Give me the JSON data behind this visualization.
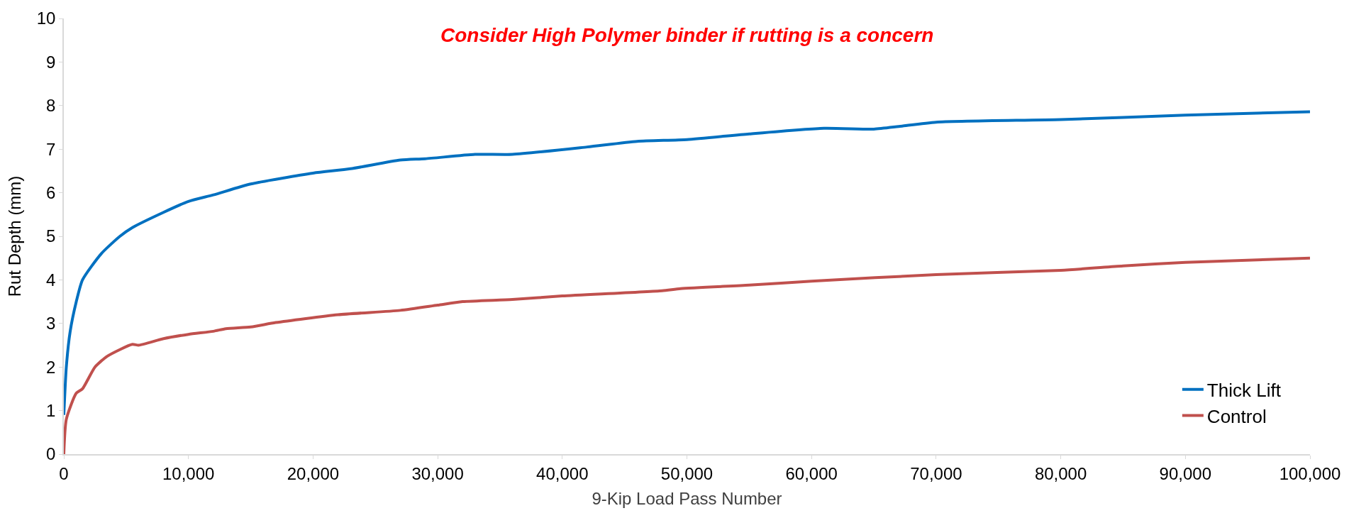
{
  "chart_data": {
    "type": "line",
    "xlabel": "9-Kip Load Pass Number",
    "ylabel": "Rut Depth (mm)",
    "annotations": [
      "Consider High Polymer binder if rutting is a concern"
    ],
    "xlim": [
      0,
      100000
    ],
    "ylim": [
      0,
      10
    ],
    "xticks": [
      {
        "value": 0,
        "label": "0"
      },
      {
        "value": 10000,
        "label": "10,000"
      },
      {
        "value": 20000,
        "label": "20,000"
      },
      {
        "value": 30000,
        "label": "30,000"
      },
      {
        "value": 40000,
        "label": "40,000"
      },
      {
        "value": 50000,
        "label": "50,000"
      },
      {
        "value": 60000,
        "label": "60,000"
      },
      {
        "value": 70000,
        "label": "70,000"
      },
      {
        "value": 80000,
        "label": "80,000"
      },
      {
        "value": 90000,
        "label": "90,000"
      },
      {
        "value": 100000,
        "label": "100,000"
      }
    ],
    "yticks": [
      0,
      1,
      2,
      3,
      4,
      5,
      6,
      7,
      8,
      9,
      10
    ],
    "grid": false,
    "legend": "bottom right",
    "marker": "none",
    "line_style": "solid",
    "series": [
      {
        "name": "Thick Lift",
        "color": "#0070c0",
        "x": [
          0,
          200,
          500,
          1000,
          1500,
          3000,
          4500,
          5500,
          8000,
          10000,
          12000,
          15000,
          20000,
          23000,
          27000,
          29000,
          33000,
          36000,
          42000,
          46000,
          50000,
          55000,
          61000,
          65000,
          67000,
          70000,
          80000,
          90000,
          100000
        ],
        "values": [
          0.9,
          2.0,
          2.8,
          3.5,
          4.0,
          4.6,
          5.0,
          5.2,
          5.55,
          5.8,
          5.95,
          6.2,
          6.45,
          6.55,
          6.75,
          6.78,
          6.88,
          6.88,
          7.05,
          7.18,
          7.22,
          7.35,
          7.48,
          7.46,
          7.52,
          7.62,
          7.68,
          7.78,
          7.86
        ]
      },
      {
        "name": "Control",
        "color": "#c0504d",
        "x": [
          0,
          200,
          1000,
          1500,
          2500,
          3500,
          5500,
          6000,
          8000,
          10000,
          12000,
          13000,
          15000,
          17000,
          22000,
          27000,
          30000,
          32000,
          36000,
          40000,
          48000,
          49500,
          55000,
          60000,
          70000,
          80000,
          85000,
          90000,
          100000
        ],
        "values": [
          0,
          0.8,
          1.4,
          1.5,
          2.0,
          2.25,
          2.52,
          2.5,
          2.65,
          2.75,
          2.82,
          2.88,
          2.92,
          3.02,
          3.2,
          3.3,
          3.42,
          3.5,
          3.55,
          3.63,
          3.75,
          3.8,
          3.88,
          3.97,
          4.12,
          4.22,
          4.32,
          4.4,
          4.5
        ]
      }
    ]
  }
}
